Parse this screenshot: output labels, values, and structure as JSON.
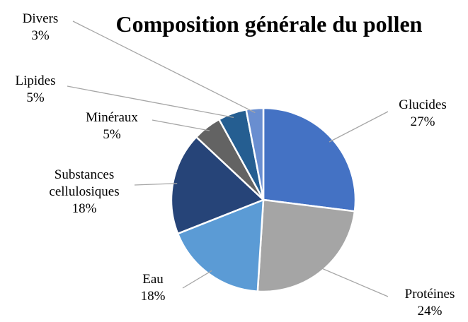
{
  "chart_data": {
    "type": "pie",
    "title": "Composition générale du pollen",
    "categories": [
      "Glucides",
      "Protéines",
      "Eau",
      "Substances cellulosiques",
      "Minéraux",
      "Lipides",
      "Divers"
    ],
    "values": [
      27,
      24,
      18,
      18,
      5,
      5,
      3
    ],
    "value_labels": [
      "27%",
      "24%",
      "18%",
      "18%",
      "5%",
      "5%",
      "3%"
    ],
    "colors": [
      "#4472c4",
      "#a5a5a5",
      "#5b9bd5",
      "#264478",
      "#636363",
      "#255e91",
      "#698ed0"
    ]
  }
}
